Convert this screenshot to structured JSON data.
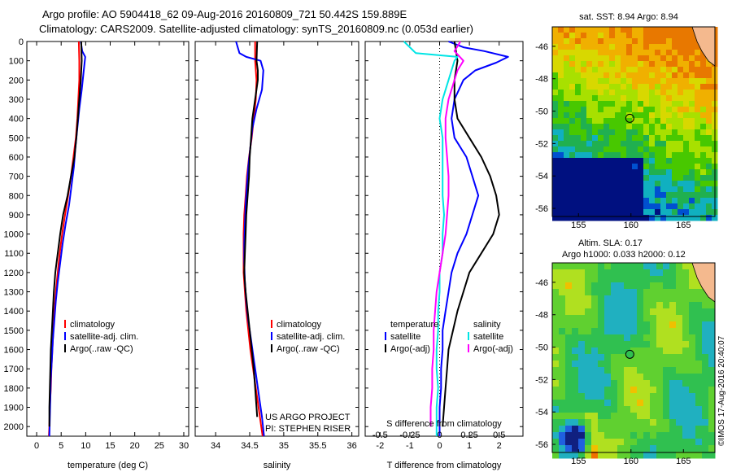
{
  "header": {
    "title_line1": "Argo profile: AO 5904418_62 09-Aug-2016 20160809_721 50.442S 159.889E",
    "title_line2": "Climatology: CARS2009. Satellite-adjusted climatology: synTS_20160809.nc (0.053d earlier)"
  },
  "colors": {
    "climatology": "#ff0000",
    "satellite": "#0000ff",
    "argo": "#000000",
    "satellite_salinity": "#00e5e5",
    "argo_salinity": "#ff00ff"
  },
  "chart_data": [
    {
      "type": "line",
      "id": "temperature",
      "xlabel": "temperature (deg C)",
      "ylabel": "",
      "xlim": [
        -2,
        31
      ],
      "ylim": [
        2050,
        0
      ],
      "xticks": [
        "0",
        "5",
        "10",
        "15",
        "20",
        "25",
        "30"
      ],
      "yticks": [
        "0",
        "100",
        "200",
        "300",
        "400",
        "500",
        "600",
        "700",
        "800",
        "900",
        "1000",
        "1100",
        "1200",
        "1300",
        "1400",
        "1500",
        "1600",
        "1700",
        "1800",
        "1900",
        "2000"
      ],
      "legend": [
        "climatology",
        "satellite-adj. clim.",
        "Argo(..raw -QC)"
      ],
      "series": [
        {
          "name": "climatology",
          "color": "climatology",
          "points": [
            [
              8.6,
              0
            ],
            [
              8.7,
              100
            ],
            [
              8.7,
              200
            ],
            [
              8.5,
              300
            ],
            [
              8.3,
              400
            ],
            [
              8.0,
              500
            ],
            [
              7.5,
              600
            ],
            [
              7.0,
              700
            ],
            [
              6.4,
              800
            ],
            [
              5.8,
              900
            ],
            [
              5.2,
              1000
            ],
            [
              4.7,
              1100
            ],
            [
              4.3,
              1200
            ],
            [
              3.9,
              1300
            ],
            [
              3.6,
              1400
            ],
            [
              3.4,
              1500
            ],
            [
              3.2,
              1600
            ],
            [
              3.0,
              1700
            ],
            [
              2.9,
              1800
            ],
            [
              2.7,
              1900
            ],
            [
              2.6,
              2000
            ],
            [
              2.5,
              2050
            ]
          ]
        },
        {
          "name": "satellite-adj. clim.",
          "color": "satellite",
          "points": [
            [
              9.0,
              0
            ],
            [
              9.3,
              50
            ],
            [
              9.9,
              80
            ],
            [
              9.6,
              150
            ],
            [
              9.2,
              250
            ],
            [
              8.7,
              350
            ],
            [
              8.3,
              450
            ],
            [
              7.9,
              550
            ],
            [
              7.6,
              650
            ],
            [
              7.1,
              750
            ],
            [
              6.6,
              850
            ],
            [
              5.9,
              950
            ],
            [
              5.3,
              1050
            ],
            [
              4.8,
              1150
            ],
            [
              4.3,
              1250
            ],
            [
              3.9,
              1350
            ],
            [
              3.6,
              1450
            ],
            [
              3.3,
              1550
            ],
            [
              3.1,
              1650
            ],
            [
              2.9,
              1750
            ],
            [
              2.8,
              1850
            ],
            [
              2.7,
              1950
            ],
            [
              2.6,
              2050
            ]
          ]
        },
        {
          "name": "Argo(..raw -QC)",
          "color": "argo",
          "points": [
            [
              9.1,
              0
            ],
            [
              9.2,
              100
            ],
            [
              9.0,
              200
            ],
            [
              8.7,
              300
            ],
            [
              8.4,
              400
            ],
            [
              8.1,
              500
            ],
            [
              7.7,
              600
            ],
            [
              7.0,
              700
            ],
            [
              6.3,
              800
            ],
            [
              5.4,
              900
            ],
            [
              4.8,
              1000
            ],
            [
              4.3,
              1100
            ],
            [
              3.8,
              1200
            ],
            [
              3.5,
              1300
            ],
            [
              3.3,
              1400
            ],
            [
              3.1,
              1500
            ],
            [
              2.9,
              1600
            ],
            [
              2.8,
              1700
            ],
            [
              2.7,
              1800
            ],
            [
              2.6,
              1900
            ],
            [
              2.6,
              2000
            ]
          ]
        }
      ]
    },
    {
      "type": "line",
      "id": "salinity",
      "xlabel": "salinity",
      "xlim": [
        33.7,
        36.1
      ],
      "ylim": [
        2050,
        0
      ],
      "xticks": [
        "34",
        "34.5",
        "35",
        "35.5",
        "36"
      ],
      "legend": [
        "climatology",
        "satellite-adj. clim.",
        "Argo(..raw -QC)"
      ],
      "annotation": [
        "US ARGO PROJECT",
        "PI: STEPHEN RISER"
      ],
      "series": [
        {
          "name": "climatology",
          "color": "climatology",
          "points": [
            [
              34.58,
              0
            ],
            [
              34.58,
              100
            ],
            [
              34.6,
              200
            ],
            [
              34.59,
              300
            ],
            [
              34.56,
              400
            ],
            [
              34.53,
              500
            ],
            [
              34.49,
              600
            ],
            [
              34.46,
              700
            ],
            [
              34.44,
              800
            ],
            [
              34.42,
              900
            ],
            [
              34.41,
              1000
            ],
            [
              34.41,
              1100
            ],
            [
              34.41,
              1200
            ],
            [
              34.43,
              1300
            ],
            [
              34.45,
              1400
            ],
            [
              34.48,
              1500
            ],
            [
              34.51,
              1600
            ],
            [
              34.55,
              1700
            ],
            [
              34.59,
              1800
            ],
            [
              34.63,
              1900
            ],
            [
              34.67,
              2000
            ],
            [
              34.69,
              2050
            ]
          ]
        },
        {
          "name": "satellite-adj. clim.",
          "color": "satellite",
          "points": [
            [
              34.3,
              0
            ],
            [
              34.35,
              60
            ],
            [
              34.45,
              80
            ],
            [
              34.66,
              100
            ],
            [
              34.7,
              150
            ],
            [
              34.68,
              250
            ],
            [
              34.6,
              350
            ],
            [
              34.54,
              450
            ],
            [
              34.51,
              550
            ],
            [
              34.48,
              650
            ],
            [
              34.46,
              750
            ],
            [
              34.44,
              850
            ],
            [
              34.43,
              950
            ],
            [
              34.42,
              1050
            ],
            [
              34.42,
              1150
            ],
            [
              34.43,
              1250
            ],
            [
              34.45,
              1350
            ],
            [
              34.48,
              1450
            ],
            [
              34.52,
              1550
            ],
            [
              34.56,
              1650
            ],
            [
              34.6,
              1750
            ],
            [
              34.64,
              1850
            ],
            [
              34.68,
              1950
            ],
            [
              34.71,
              2050
            ]
          ]
        },
        {
          "name": "Argo(..raw -QC)",
          "color": "argo",
          "points": [
            [
              34.61,
              0
            ],
            [
              34.6,
              100
            ],
            [
              34.62,
              150
            ],
            [
              34.62,
              200
            ],
            [
              34.58,
              300
            ],
            [
              34.54,
              400
            ],
            [
              34.52,
              500
            ],
            [
              34.5,
              600
            ],
            [
              34.49,
              700
            ],
            [
              34.47,
              800
            ],
            [
              34.45,
              900
            ],
            [
              34.44,
              1000
            ],
            [
              34.43,
              1100
            ],
            [
              34.42,
              1200
            ],
            [
              34.44,
              1300
            ],
            [
              34.47,
              1400
            ],
            [
              34.5,
              1500
            ],
            [
              34.53,
              1600
            ],
            [
              34.56,
              1700
            ],
            [
              34.58,
              1800
            ],
            [
              34.6,
              1900
            ],
            [
              34.61,
              1950
            ]
          ]
        }
      ]
    },
    {
      "type": "line",
      "id": "differences",
      "xlabel": "T difference from climatology",
      "xlabel_top": "S difference from climatology",
      "xlim": [
        -2.5,
        2.8
      ],
      "ylim": [
        2050,
        0
      ],
      "xticks": [
        "-2",
        "-1",
        "0",
        "1",
        "2"
      ],
      "s_ticks": [
        "-0.5",
        "-0.25",
        "0",
        "0.25",
        "0.5"
      ],
      "legend_temperature": {
        "heading": "temperature",
        "items": [
          "satellite",
          "Argo(-adj)"
        ]
      },
      "legend_salinity": {
        "heading": "salinity",
        "items": [
          "satellite",
          "Argo(-adj)"
        ]
      },
      "series": [
        {
          "name": "temperature satellite",
          "color": "satellite",
          "points": [
            [
              0.3,
              0
            ],
            [
              0.8,
              30
            ],
            [
              1.5,
              50
            ],
            [
              2.3,
              80
            ],
            [
              1.9,
              110
            ],
            [
              1.2,
              150
            ],
            [
              0.8,
              200
            ],
            [
              0.5,
              300
            ],
            [
              0.4,
              400
            ],
            [
              0.5,
              500
            ],
            [
              0.9,
              600
            ],
            [
              1.1,
              700
            ],
            [
              1.3,
              800
            ],
            [
              1.1,
              900
            ],
            [
              0.9,
              1000
            ],
            [
              0.6,
              1100
            ],
            [
              0.4,
              1200
            ],
            [
              0.3,
              1300
            ],
            [
              0.2,
              1400
            ],
            [
              0.1,
              1500
            ],
            [
              0.1,
              1600
            ],
            [
              0.05,
              1700
            ],
            [
              0.05,
              1800
            ],
            [
              0.0,
              1900
            ],
            [
              0.0,
              2050
            ]
          ]
        },
        {
          "name": "temperature Argo(-adj)",
          "color": "argo",
          "points": [
            [
              0.5,
              0
            ],
            [
              0.6,
              100
            ],
            [
              0.5,
              200
            ],
            [
              0.5,
              300
            ],
            [
              0.6,
              400
            ],
            [
              1.0,
              500
            ],
            [
              1.4,
              600
            ],
            [
              1.7,
              700
            ],
            [
              1.9,
              800
            ],
            [
              2.0,
              900
            ],
            [
              1.8,
              1000
            ],
            [
              1.4,
              1100
            ],
            [
              1.0,
              1200
            ],
            [
              0.8,
              1300
            ],
            [
              0.6,
              1400
            ],
            [
              0.45,
              1500
            ],
            [
              0.3,
              1600
            ],
            [
              0.25,
              1700
            ],
            [
              0.2,
              1800
            ],
            [
              0.15,
              1900
            ],
            [
              0.1,
              2000
            ]
          ]
        },
        {
          "name": "salinity satellite",
          "color": "satellite_salinity",
          "points": [
            [
              -1.2,
              0
            ],
            [
              -0.8,
              60
            ],
            [
              0.6,
              80
            ],
            [
              0.5,
              100
            ],
            [
              0.3,
              200
            ],
            [
              0.1,
              300
            ],
            [
              0.0,
              400
            ],
            [
              0.1,
              500
            ],
            [
              0.1,
              600
            ],
            [
              0.1,
              700
            ],
            [
              0.1,
              800
            ],
            [
              0.15,
              900
            ],
            [
              0.1,
              1000
            ],
            [
              0.1,
              1100
            ],
            [
              0.0,
              1200
            ],
            [
              0.0,
              1300
            ],
            [
              -0.05,
              1400
            ],
            [
              -0.05,
              1500
            ],
            [
              -0.1,
              1600
            ],
            [
              -0.1,
              1700
            ],
            [
              -0.05,
              1800
            ],
            [
              -0.1,
              1900
            ],
            [
              -0.1,
              2050
            ]
          ]
        },
        {
          "name": "salinity Argo(-adj)",
          "color": "argo_salinity",
          "points": [
            [
              0.7,
              0
            ],
            [
              0.5,
              50
            ],
            [
              0.8,
              100
            ],
            [
              0.6,
              150
            ],
            [
              0.5,
              200
            ],
            [
              0.3,
              300
            ],
            [
              0.2,
              400
            ],
            [
              0.2,
              500
            ],
            [
              0.25,
              600
            ],
            [
              0.3,
              700
            ],
            [
              0.3,
              800
            ],
            [
              0.25,
              900
            ],
            [
              0.2,
              1000
            ],
            [
              0.1,
              1100
            ],
            [
              0.0,
              1200
            ],
            [
              -0.1,
              1300
            ],
            [
              -0.15,
              1400
            ],
            [
              -0.2,
              1500
            ],
            [
              -0.2,
              1600
            ],
            [
              -0.25,
              1700
            ],
            [
              -0.25,
              1800
            ],
            [
              -0.3,
              1900
            ],
            [
              -0.3,
              2000
            ]
          ]
        }
      ]
    },
    {
      "type": "heatmap",
      "id": "sst_map",
      "title": "sat. SST: 8.94  Argo: 8.94",
      "xlim": [
        152.5,
        168
      ],
      "ylim": [
        -56.5,
        -44.8
      ],
      "xticks": [
        "155",
        "160",
        "165"
      ],
      "yticks": [
        "-46",
        "-48",
        "-50",
        "-52",
        "-54",
        "-56"
      ],
      "marker": {
        "lon": 159.889,
        "lat": -50.442
      }
    },
    {
      "type": "heatmap",
      "id": "sla_map",
      "title_line1": "Altim. SLA: 0.17",
      "title_line2": "Argo h1000: 0.033 h2000: 0.12",
      "xlim": [
        152.5,
        168
      ],
      "ylim": [
        -56.5,
        -44.8
      ],
      "xticks": [
        "155",
        "160",
        "165"
      ],
      "yticks": [
        "-46",
        "-48",
        "-50",
        "-52",
        "-54",
        "-56"
      ],
      "marker": {
        "lon": 159.889,
        "lat": -50.442
      },
      "credit": "©IMOS 17-Aug-2016 20:40:07"
    }
  ]
}
